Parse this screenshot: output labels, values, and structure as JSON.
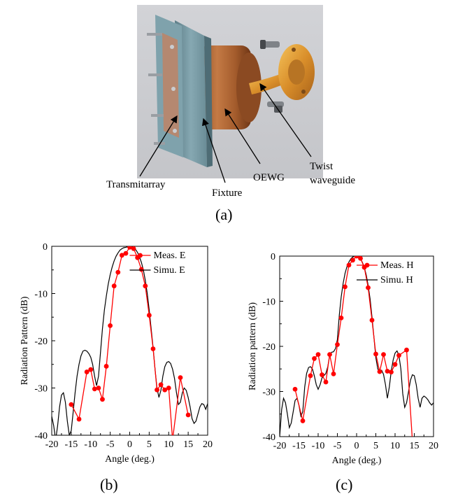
{
  "photo": {
    "labels": {
      "transmitarray": "Transmitarray",
      "fixture": "Fixture",
      "oewg": "OEWG",
      "twist_line1": "Twist",
      "twist_line2": "waveguide"
    },
    "caption": "(a)"
  },
  "chart_data": [
    {
      "type": "line",
      "caption": "(b)",
      "xlabel": "Angle (deg.)",
      "ylabel": "Radiation Pattern (dB)",
      "xlim": [
        -20,
        20
      ],
      "ylim": [
        -40,
        0
      ],
      "xticks": [
        -20,
        -15,
        -10,
        -5,
        0,
        5,
        10,
        15,
        20
      ],
      "yticks": [
        0,
        -10,
        -20,
        -30,
        -40
      ],
      "legend_position": "top-right",
      "series": [
        {
          "name": "Meas. E",
          "color": "#ff0000",
          "marker": "circle",
          "x": [
            -15,
            -13,
            -11,
            -10,
            -9,
            -8,
            -7,
            -6,
            -5,
            -4,
            -3,
            -2,
            -1,
            0,
            1,
            2,
            3,
            4,
            5,
            6,
            7,
            8,
            9,
            10,
            11,
            13,
            15
          ],
          "y": [
            -33.5,
            -36.6,
            -26.6,
            -26.1,
            -30.2,
            -30,
            -32.4,
            -25.4,
            -16.8,
            -8.4,
            -5.5,
            -1.9,
            -1.5,
            -0.2,
            -0.5,
            -2.4,
            -4.9,
            -8.4,
            -14.6,
            -21.7,
            -30.4,
            -29.3,
            -30.4,
            -30,
            -41,
            -27.8,
            -35.7
          ]
        },
        {
          "name": "Simu. E",
          "color": "#000000",
          "x": [
            -20,
            -19.5,
            -19,
            -18.5,
            -18,
            -17.5,
            -17,
            -16.5,
            -16,
            -15.5,
            -15,
            -14.5,
            -14,
            -13.5,
            -13,
            -12.5,
            -12,
            -11.5,
            -11,
            -10.5,
            -10,
            -9.5,
            -9,
            -8.5,
            -8,
            -7.5,
            -7,
            -6.5,
            -6,
            -5.5,
            -5,
            -4.5,
            -4,
            -3.5,
            -3,
            -2.5,
            -2,
            -1.5,
            -1,
            -0.5,
            0,
            0.5,
            1,
            1.5,
            2,
            2.5,
            3,
            3.5,
            4,
            4.5,
            5,
            5.5,
            6,
            6.5,
            7,
            7.5,
            8,
            8.5,
            9,
            9.5,
            10,
            10.5,
            11,
            11.5,
            12,
            12.5,
            13,
            13.5,
            14,
            14.5,
            15,
            15.5,
            16,
            16.5,
            17,
            17.5,
            18,
            18.5,
            19,
            19.5,
            20
          ],
          "y": [
            -36,
            -38,
            -41,
            -38,
            -34,
            -31.5,
            -31,
            -33,
            -37,
            -40,
            -39,
            -35,
            -31,
            -27.5,
            -25,
            -23.2,
            -22.2,
            -22,
            -22.2,
            -22.7,
            -23.5,
            -25,
            -27.5,
            -29.5,
            -27.5,
            -22.5,
            -17.5,
            -13.5,
            -10.5,
            -8,
            -6,
            -4.4,
            -3.1,
            -2.1,
            -1.4,
            -0.8,
            -0.5,
            -0.3,
            -0.2,
            -0.1,
            0,
            -0.1,
            -0.3,
            -0.7,
            -1.3,
            -2.2,
            -3.4,
            -5,
            -7.2,
            -10,
            -13.5,
            -17.5,
            -21.5,
            -26,
            -30,
            -32,
            -30.5,
            -27.5,
            -25.5,
            -24.6,
            -24.4,
            -24.8,
            -26,
            -28,
            -31,
            -33.5,
            -33,
            -31,
            -30,
            -30.5,
            -32,
            -34,
            -36.5,
            -37.5,
            -37,
            -35.5,
            -34,
            -33.3,
            -33.5,
            -34.5,
            -33.3
          ]
        }
      ]
    },
    {
      "type": "line",
      "caption": "(c)",
      "xlabel": "Angle (deg.)",
      "ylabel": "Radiation pattern (dB)",
      "xlim": [
        -20,
        20
      ],
      "ylim": [
        -40,
        0
      ],
      "xticks": [
        -20,
        -15,
        -10,
        -5,
        0,
        5,
        10,
        15,
        20
      ],
      "yticks": [
        0,
        -10,
        -20,
        -30,
        -40
      ],
      "legend_position": "top-right",
      "series": [
        {
          "name": "Meas. H",
          "color": "#ff0000",
          "marker": "circle",
          "x": [
            -16,
            -14,
            -12,
            -11,
            -10,
            -9,
            -8,
            -7,
            -6,
            -5,
            -4,
            -3,
            -2,
            -1,
            0,
            1,
            2,
            3,
            4,
            5,
            6,
            7,
            8,
            9,
            10,
            11,
            13,
            14.5
          ],
          "y": [
            -29.5,
            -36.5,
            -26.5,
            -22.7,
            -21.8,
            -26.3,
            -27.9,
            -21.8,
            -26.1,
            -19.6,
            -13.7,
            -6.8,
            -2,
            -0.9,
            0,
            -0.5,
            -2.5,
            -7,
            -14.2,
            -21.7,
            -25.6,
            -21.8,
            -25.5,
            -25.7,
            -24,
            -22,
            -20.8,
            -41
          ]
        },
        {
          "name": "Simu. H",
          "color": "#000000",
          "x": [
            -20,
            -19.5,
            -19,
            -18.5,
            -18,
            -17.5,
            -17,
            -16.5,
            -16,
            -15.5,
            -15,
            -14.5,
            -14,
            -13.5,
            -13,
            -12.5,
            -12,
            -11.5,
            -11,
            -10.5,
            -10,
            -9.5,
            -9,
            -8.5,
            -8,
            -7.5,
            -7,
            -6.5,
            -6,
            -5.5,
            -5,
            -4.5,
            -4,
            -3.5,
            -3,
            -2.5,
            -2,
            -1.5,
            -1,
            -0.5,
            0,
            0.5,
            1,
            1.5,
            2,
            2.5,
            3,
            3.5,
            4,
            4.5,
            5,
            5.5,
            6,
            6.5,
            7,
            7.5,
            8,
            8.5,
            9,
            9.5,
            10,
            10.5,
            11,
            11.5,
            12,
            12.5,
            13,
            13.5,
            14,
            14.5,
            15,
            15.5,
            16,
            16.5,
            17,
            17.5,
            18,
            18.5,
            19,
            19.5,
            20
          ],
          "y": [
            -40,
            -34,
            -31.5,
            -32.5,
            -35,
            -38,
            -37,
            -34.5,
            -32,
            -31.5,
            -33,
            -35.5,
            -34.5,
            -29,
            -26,
            -24.7,
            -24.5,
            -25,
            -26.5,
            -28.5,
            -29.5,
            -28.5,
            -27,
            -26.5,
            -26,
            -24.5,
            -22,
            -21.3,
            -21.2,
            -20.5,
            -18.5,
            -13,
            -9,
            -6,
            -3.8,
            -2.3,
            -1.3,
            -0.6,
            -0.2,
            0,
            0,
            -0.2,
            -0.6,
            -1.4,
            -2.5,
            -4.2,
            -6.5,
            -9.5,
            -13.5,
            -18,
            -22.5,
            -25,
            -25.5,
            -25.3,
            -26.2,
            -28.5,
            -31.5,
            -29,
            -25.5,
            -23,
            -21.5,
            -21,
            -22,
            -25,
            -30.5,
            -33.5,
            -32.5,
            -30,
            -27.5,
            -26.3,
            -26.5,
            -28.5,
            -31.5,
            -33.5,
            -31.5,
            -31,
            -31.3,
            -31.8,
            -32.5,
            -33,
            -32.5
          ]
        }
      ]
    }
  ]
}
